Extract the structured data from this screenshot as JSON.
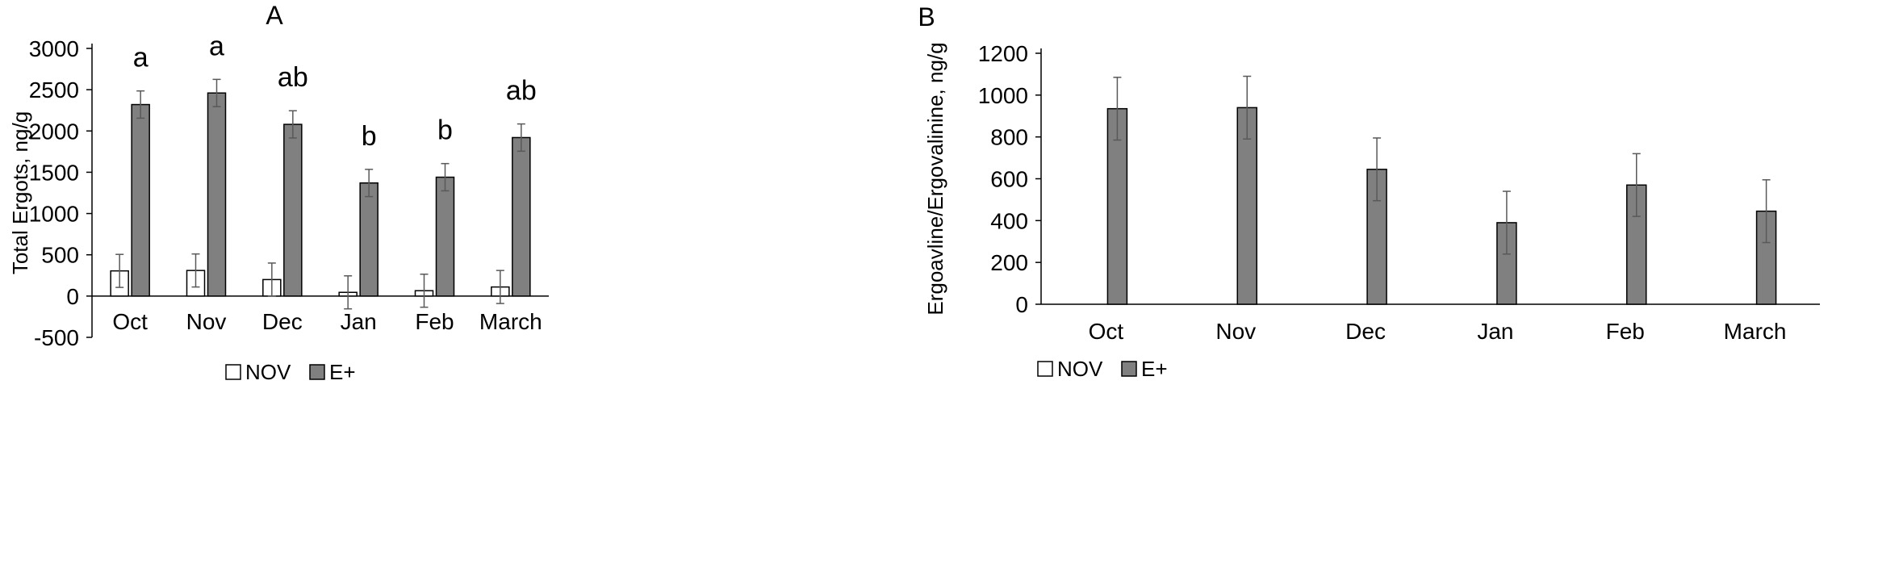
{
  "colors": {
    "nov_fill": "#ffffff",
    "eplus_fill": "#808080",
    "stroke": "#000000",
    "error": "#595959"
  },
  "chart_data": [
    {
      "type": "bar",
      "title": "A",
      "xlabel": "",
      "ylabel": "Total Ergots, ng/g",
      "ylim": [
        -500,
        3000
      ],
      "yticks": [
        -500,
        0,
        500,
        1000,
        1500,
        2000,
        2500,
        3000
      ],
      "ytick_labels": [
        "-500",
        "0",
        "500",
        "1000",
        "1500",
        "2000",
        "2500",
        "3000"
      ],
      "categories": [
        "Oct",
        "Nov",
        "Dec",
        "Jan",
        "Feb",
        "March"
      ],
      "series": [
        {
          "name": "NOV",
          "values": [
            305,
            310,
            200,
            45,
            65,
            110
          ],
          "error": [
            200,
            200,
            200,
            200,
            200,
            200
          ]
        },
        {
          "name": "E+",
          "values": [
            2320,
            2460,
            2080,
            1370,
            1440,
            1920
          ],
          "error": [
            165,
            165,
            165,
            165,
            165,
            165
          ]
        }
      ],
      "annotations": [
        "a",
        "a",
        "ab",
        "b",
        "b",
        "ab"
      ],
      "legend": {
        "position": "bottom",
        "items": [
          "NOV",
          "E+"
        ]
      },
      "grid": false
    },
    {
      "type": "bar",
      "title": "B",
      "xlabel": "",
      "ylabel": "Ergoavline/Ergovalinine, ng/g",
      "ylim": [
        0,
        1200
      ],
      "yticks": [
        0,
        200,
        400,
        600,
        800,
        1000,
        1200
      ],
      "ytick_labels": [
        "0",
        "200",
        "400",
        "600",
        "800",
        "1000",
        "1200"
      ],
      "categories": [
        "Oct",
        "Nov",
        "Dec",
        "Jan",
        "Feb",
        "March"
      ],
      "series": [
        {
          "name": "NOV",
          "values": [
            0,
            0,
            0,
            0,
            0,
            0
          ],
          "error": [
            0,
            0,
            0,
            0,
            0,
            0
          ]
        },
        {
          "name": "E+",
          "values": [
            935,
            940,
            645,
            390,
            570,
            445
          ],
          "error": [
            150,
            150,
            150,
            150,
            150,
            150
          ]
        }
      ],
      "annotations": [],
      "legend": {
        "position": "bottom",
        "items": [
          "NOV",
          "E+"
        ]
      },
      "grid": false
    }
  ]
}
